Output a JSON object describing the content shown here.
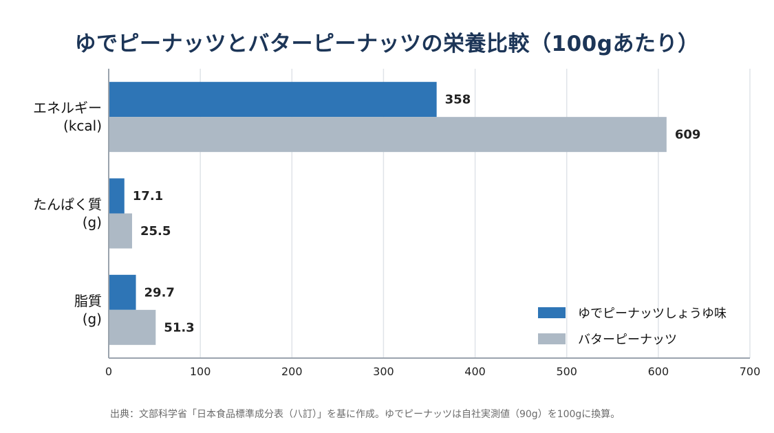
{
  "chart_data": {
    "type": "bar",
    "orientation": "horizontal",
    "title": "ゆでピーナッツとバターピーナッツの栄養比較（100gあたり）",
    "categories": [
      [
        "エネルギー",
        "(kcal)"
      ],
      [
        "たんぱく質",
        "(g)"
      ],
      [
        "脂質",
        "(g)"
      ]
    ],
    "series": [
      {
        "name": "ゆでピーナッツしょうゆ味",
        "values": [
          358,
          17.1,
          29.7
        ],
        "labels": [
          "358",
          "17.1",
          "29.7"
        ],
        "color": "#2e75b6"
      },
      {
        "name": "バターピーナッツ",
        "values": [
          609,
          25.5,
          51.3
        ],
        "labels": [
          "609",
          "25.5",
          "51.3"
        ],
        "color": "#adb9c5"
      }
    ],
    "xlim": [
      0,
      700
    ],
    "xticks": [
      "0",
      "100",
      "200",
      "300",
      "400",
      "500",
      "600",
      "700"
    ],
    "grid": true,
    "legend_position": "bottom-right"
  },
  "source_note": "出典：文部科学省「日本食品標準成分表（八訂）」を基に作成。ゆでピーナッツは自社実測値（90g）を100gに換算。"
}
